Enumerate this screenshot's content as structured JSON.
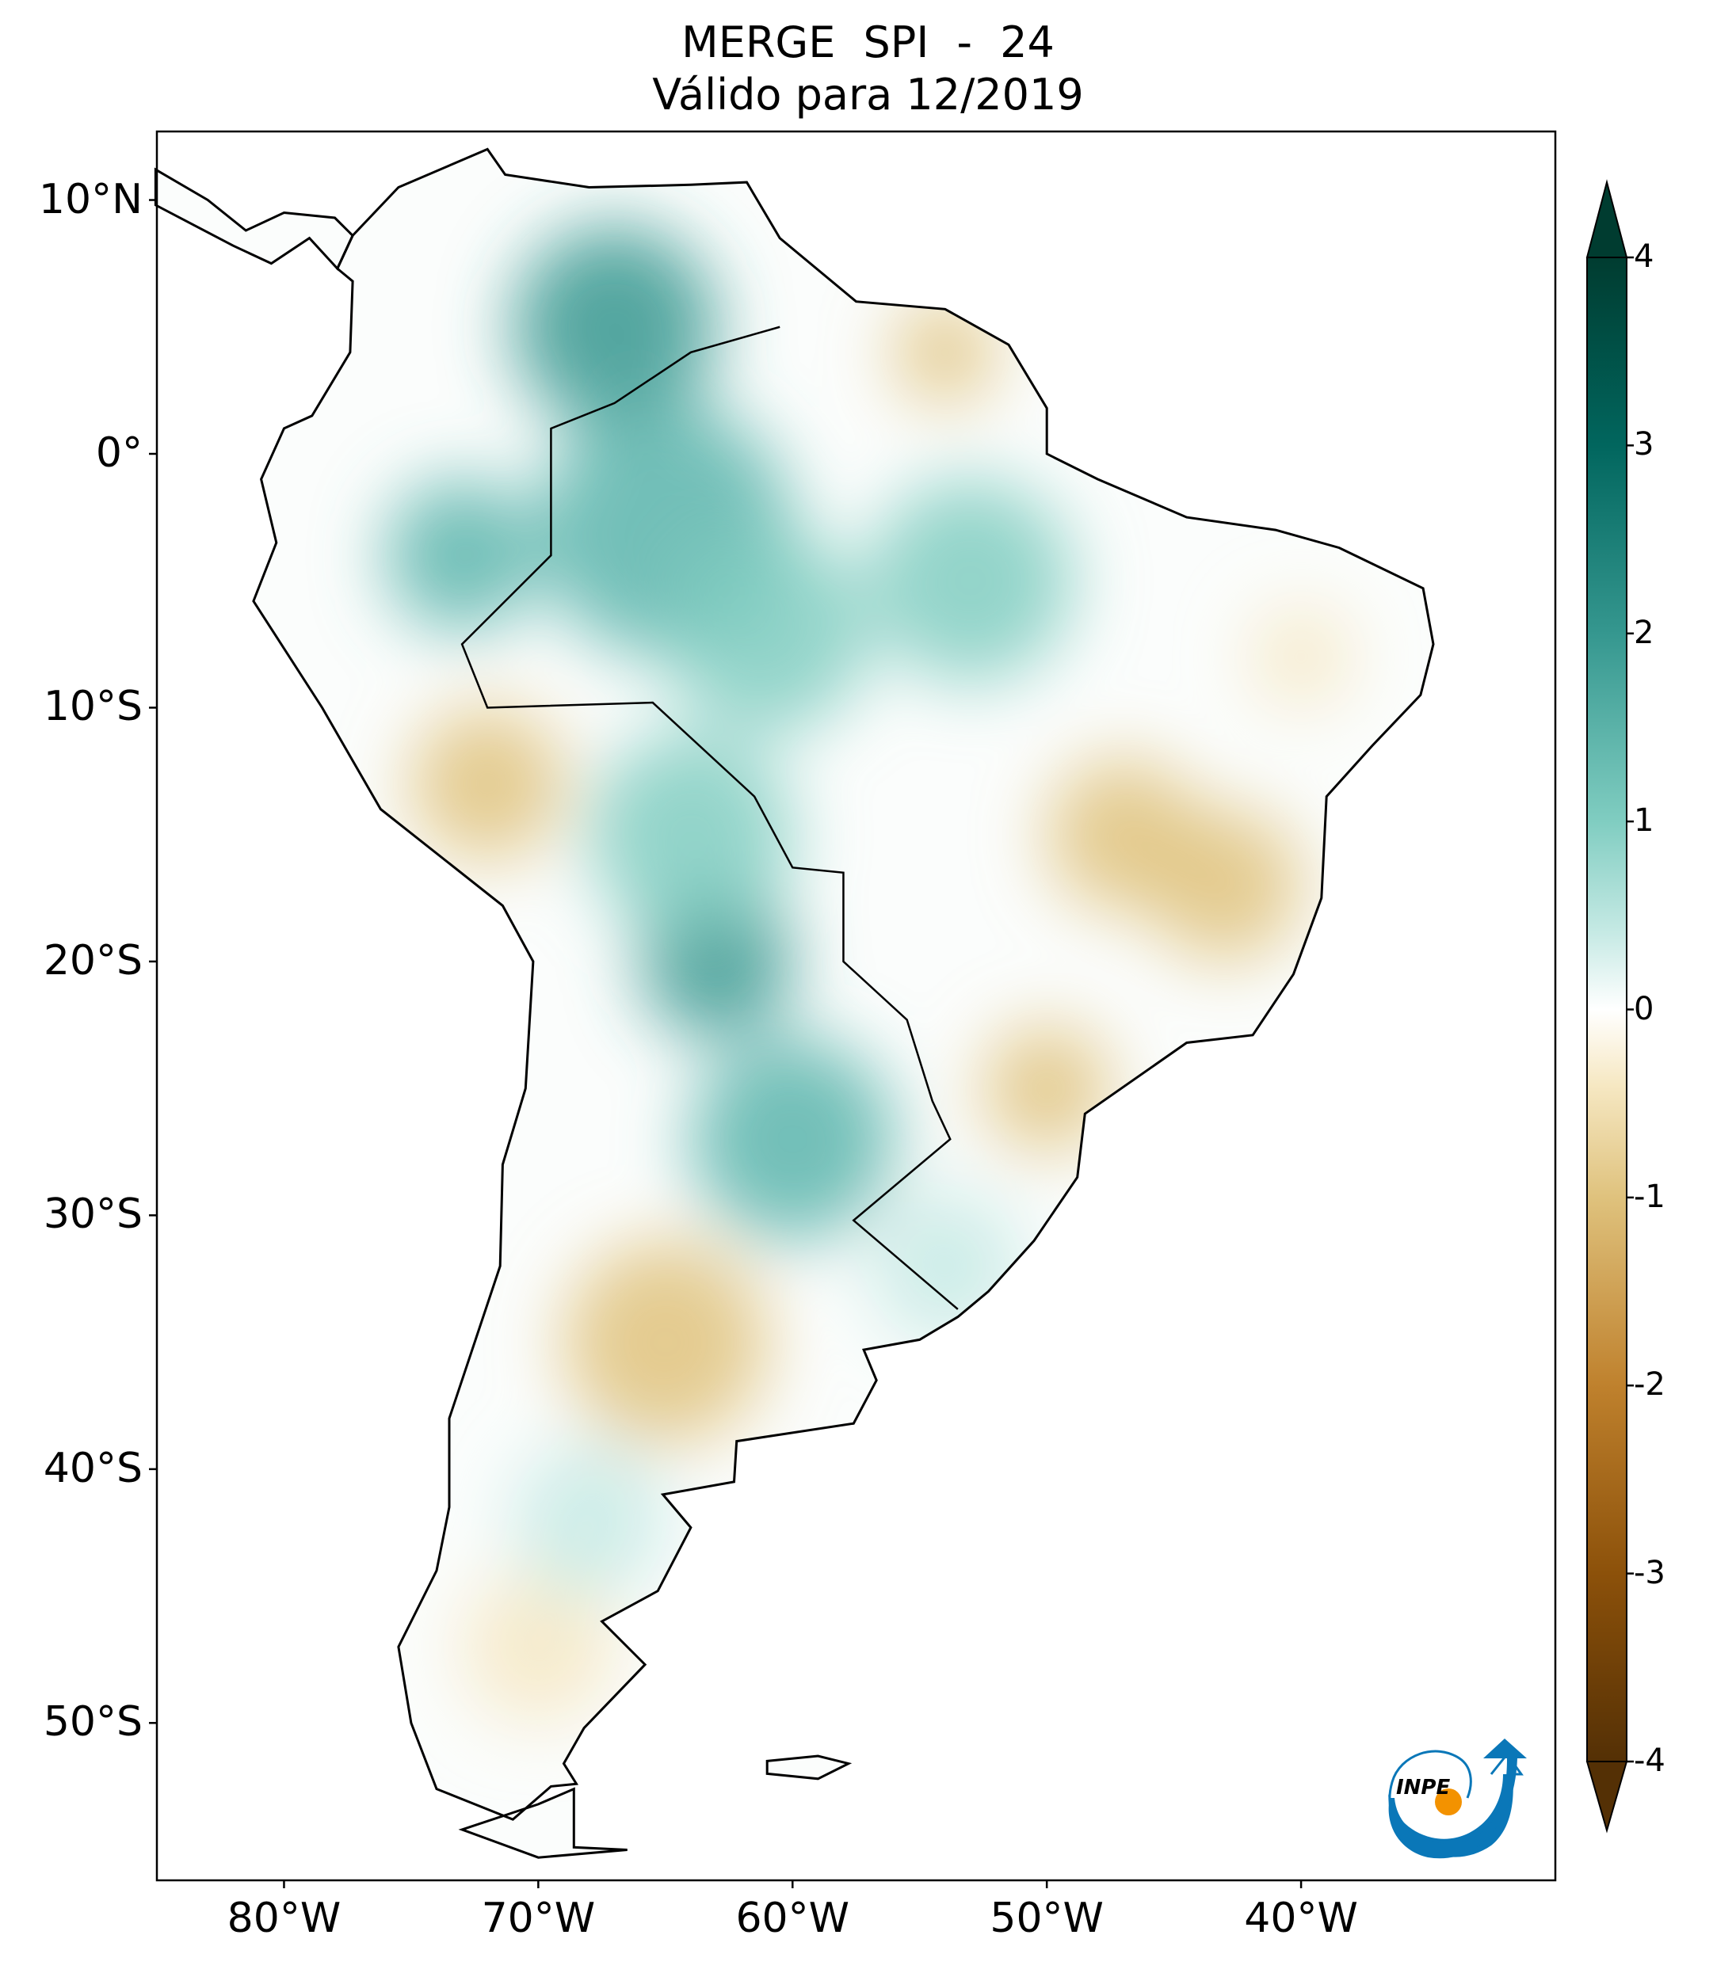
{
  "title": {
    "line1": "MERGE   SPI - 24",
    "line2": "Válido para 12/2019"
  },
  "map": {
    "extent": {
      "lon_min": -85,
      "lon_max": -30,
      "lat_min": -56.2,
      "lat_max": 12.7
    },
    "lon_ticks": [
      {
        "value": -80,
        "label": "80°W"
      },
      {
        "value": -70,
        "label": "70°W"
      },
      {
        "value": -60,
        "label": "60°W"
      },
      {
        "value": -50,
        "label": "50°W"
      },
      {
        "value": -40,
        "label": "40°W"
      }
    ],
    "lat_ticks": [
      {
        "value": 10,
        "label": "10°N"
      },
      {
        "value": 0,
        "label": "0°"
      },
      {
        "value": -10,
        "label": "10°S"
      },
      {
        "value": -20,
        "label": "20°S"
      },
      {
        "value": -30,
        "label": "30°S"
      },
      {
        "value": -40,
        "label": "40°S"
      },
      {
        "value": -50,
        "label": "50°S"
      }
    ],
    "land_border_color": "#000000"
  },
  "colorbar": {
    "colormap": "BrBG",
    "range": [
      -4,
      4
    ],
    "extend": "both",
    "ticks": [
      {
        "value": 4,
        "label": "4"
      },
      {
        "value": 3,
        "label": "3"
      },
      {
        "value": 2,
        "label": "2"
      },
      {
        "value": 1,
        "label": "1"
      },
      {
        "value": 0,
        "label": "0"
      },
      {
        "value": -1,
        "label": "-1"
      },
      {
        "value": -2,
        "label": "-2"
      },
      {
        "value": -3,
        "label": "-3"
      },
      {
        "value": -4,
        "label": "-4"
      }
    ],
    "colors": {
      "low": "#543005",
      "mid": "#ffffff",
      "high": "#003c30"
    }
  },
  "logo": {
    "text": "INPE",
    "blue": "#0a77b8",
    "orange": "#f39200"
  }
}
